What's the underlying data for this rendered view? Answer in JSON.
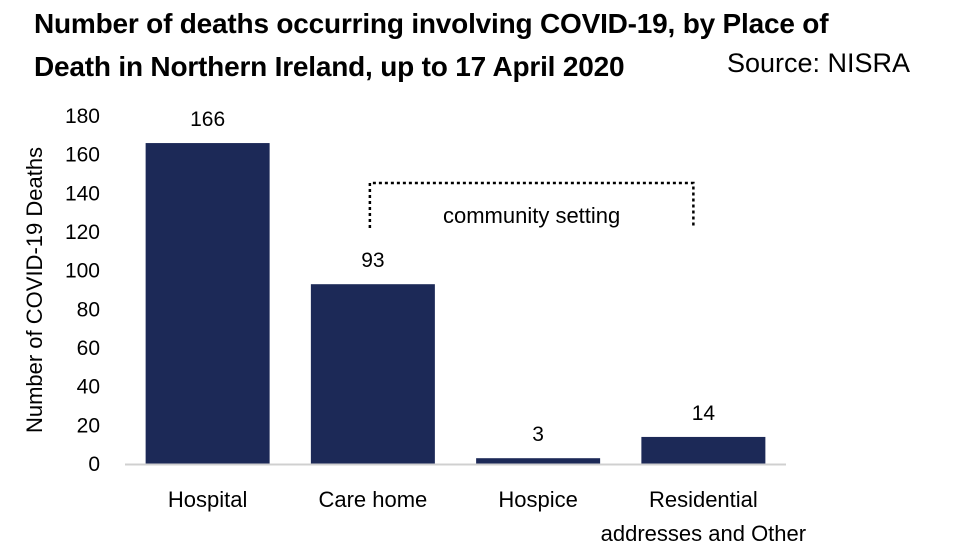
{
  "chart_data": {
    "type": "bar",
    "title_lines": [
      "Number of deaths occurring involving COVID-19, by Place of",
      "Death in Northern Ireland, up to 17 April 2020"
    ],
    "source_note": "Source: NISRA",
    "ylabel": "Number of COVID-19 Deaths",
    "xlabel": "",
    "ylim": [
      0,
      180
    ],
    "yticks": [
      0,
      20,
      40,
      60,
      80,
      100,
      120,
      140,
      160,
      180
    ],
    "categories": [
      [
        "Hospital"
      ],
      [
        "Care home"
      ],
      [
        "Hospice"
      ],
      [
        "Residential",
        "addresses and Other"
      ]
    ],
    "values": [
      166,
      93,
      3,
      14
    ],
    "bar_color": "#1c2957",
    "grid": false,
    "annotation": {
      "text": "community setting",
      "spans_categories": [
        "Care home",
        "Residential addresses and Other"
      ]
    }
  }
}
